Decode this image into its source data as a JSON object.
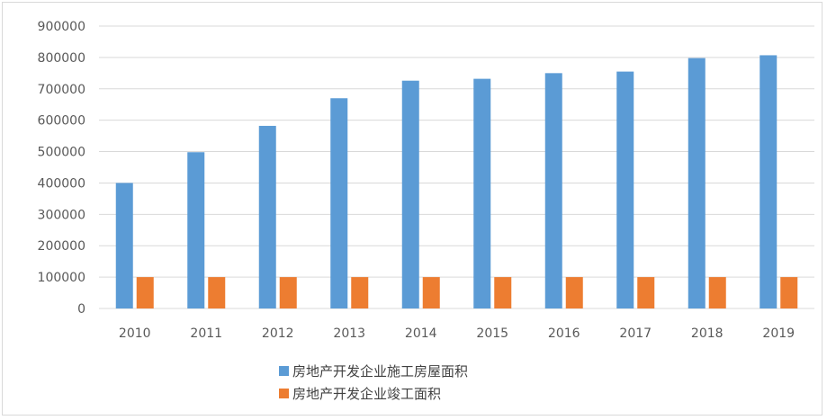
{
  "chart_data": {
    "type": "bar",
    "categories": [
      "2010",
      "2011",
      "2012",
      "2013",
      "2014",
      "2015",
      "2016",
      "2017",
      "2018",
      "2019"
    ],
    "series": [
      {
        "name": "房地产开发企业施工房屋面积",
        "color": "#5b9bd5",
        "values": [
          400000,
          498000,
          582000,
          670000,
          726000,
          732000,
          750000,
          755000,
          798000,
          807000
        ]
      },
      {
        "name": "房地产开发企业竣工面积",
        "color": "#ed7d31",
        "values": [
          100000,
          100000,
          100000,
          100000,
          100000,
          100000,
          100000,
          100000,
          100000,
          100000
        ]
      }
    ],
    "y_ticks": [
      "0",
      "100000",
      "200000",
      "300000",
      "400000",
      "500000",
      "600000",
      "700000",
      "800000",
      "900000"
    ],
    "ylim": [
      0,
      900000
    ],
    "grid": true,
    "legend_position": "bottom"
  }
}
